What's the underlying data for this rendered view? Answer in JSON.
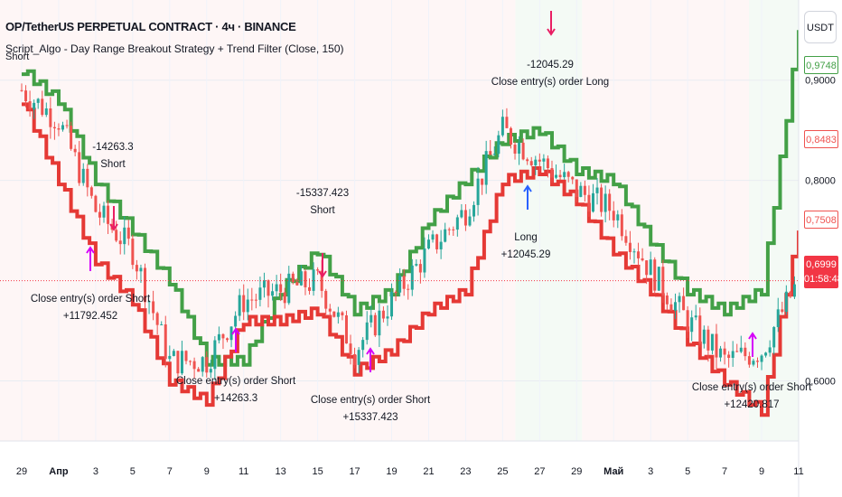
{
  "header": {
    "title": "OP/TetherUS PERPETUAL CONTRACT · 4ч · BINANCE",
    "indicator": "Script_Algo - Day Range Breakout Strategy + Trend Filter (Close, 150)",
    "short_label": "Short"
  },
  "currency_button": "USDT",
  "price_scale": {
    "ticks": [
      "0,9000",
      "0,8000",
      "0,6000"
    ],
    "labels": [
      {
        "text": "0,9748",
        "color": "#43a047"
      },
      {
        "text": "0,8483",
        "color": "#ef5350"
      },
      {
        "text": "0,7508",
        "color": "#ef5350"
      }
    ],
    "current": {
      "price": "0,6999",
      "timer": "01:58:48"
    }
  },
  "time_axis": [
    "29",
    "Апр",
    "3",
    "5",
    "7",
    "9",
    "11",
    "13",
    "15",
    "17",
    "19",
    "21",
    "23",
    "25",
    "27",
    "29",
    "Май",
    "3",
    "5",
    "7",
    "9",
    "11"
  ],
  "annotations": [
    {
      "id": "a1",
      "lines": [
        "-14263.3",
        "Short"
      ]
    },
    {
      "id": "a2",
      "lines": [
        "Close entry(s) order Short",
        "+11792.452"
      ]
    },
    {
      "id": "a3",
      "lines": [
        "-15337.423",
        "Short"
      ]
    },
    {
      "id": "a4",
      "lines": [
        "Close entry(s) order Short",
        "+14263.3"
      ]
    },
    {
      "id": "a5",
      "lines": [
        "Close entry(s) order Short",
        "+15337.423"
      ]
    },
    {
      "id": "a6",
      "lines": [
        "-12045.29",
        "Close entry(s) order Long"
      ]
    },
    {
      "id": "a7",
      "lines": [
        "Long",
        "+12045.29"
      ]
    },
    {
      "id": "a8",
      "lines": [
        "Close entry(s) order Short",
        "+12420.817"
      ]
    }
  ],
  "chart_data": {
    "type": "line",
    "x": [
      "29",
      "Апр",
      "3",
      "5",
      "7",
      "9",
      "11",
      "13",
      "15",
      "17",
      "19",
      "21",
      "23",
      "25",
      "27",
      "29",
      "Май",
      "3",
      "5",
      "7",
      "9",
      "11"
    ],
    "series": [
      {
        "values": [
          0.91,
          0.88,
          0.8,
          0.75,
          0.7,
          0.62,
          0.62,
          0.69,
          0.73,
          0.67,
          0.69,
          0.76,
          0.8,
          0.84,
          0.85,
          0.81,
          0.8,
          0.74,
          0.69,
          0.67,
          0.69,
          0.95
        ]
      },
      {
        "values": [
          0.88,
          0.8,
          0.72,
          0.68,
          0.6,
          0.58,
          0.66,
          0.66,
          0.67,
          0.61,
          0.63,
          0.67,
          0.69,
          0.8,
          0.81,
          0.78,
          0.73,
          0.69,
          0.64,
          0.6,
          0.57,
          0.75
        ]
      },
      {
        "values": [
          0.89,
          0.86,
          0.77,
          0.73,
          0.62,
          0.62,
          0.68,
          0.69,
          0.7,
          0.63,
          0.68,
          0.73,
          0.77,
          0.85,
          0.82,
          0.79,
          0.77,
          0.71,
          0.66,
          0.62,
          0.63,
          0.7
        ]
      }
    ],
    "ylim": [
      0.54,
      0.98
    ],
    "background": {
      "red_zone": "#ef5350",
      "green_zone": "#4caf50"
    },
    "colors": {
      "upper_line": "#43a047",
      "lower_line": "#e53935",
      "up_candle": "#26a69a",
      "down_candle": "#ef5350",
      "entry_arrow": "#d500f9",
      "long_arrow": "#2962ff",
      "short_arrow": "#e91e63"
    }
  }
}
